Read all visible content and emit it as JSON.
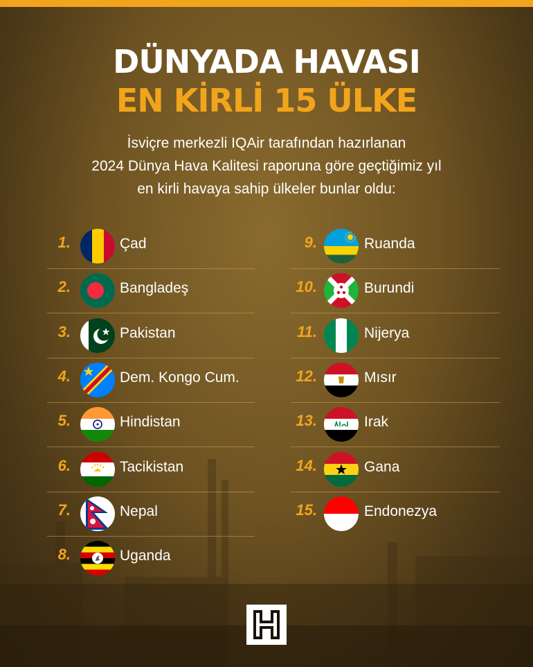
{
  "header": {
    "title_line1": "DÜNYADA HAVASI",
    "title_line2": "EN KİRLİ 15 ÜLKE"
  },
  "intro": {
    "line1": "İsviçre merkezli IQAir tarafından hazırlanan",
    "line2": "2024 Dünya Hava Kalitesi raporuna göre geçtiğimiz yıl",
    "line3": "en kirli havaya sahip ülkeler bunlar oldu:"
  },
  "colors": {
    "accent": "#f2a51c",
    "text": "#ffffff"
  },
  "countries": [
    {
      "rank": "1.",
      "name": "Çad",
      "flag": "chad-flag-icon"
    },
    {
      "rank": "2.",
      "name": "Bangladeş",
      "flag": "bangladesh-flag-icon"
    },
    {
      "rank": "3.",
      "name": "Pakistan",
      "flag": "pakistan-flag-icon"
    },
    {
      "rank": "4.",
      "name": "Dem. Kongo Cum.",
      "flag": "dr-congo-flag-icon"
    },
    {
      "rank": "5.",
      "name": "Hindistan",
      "flag": "india-flag-icon"
    },
    {
      "rank": "6.",
      "name": "Tacikistan",
      "flag": "tajikistan-flag-icon"
    },
    {
      "rank": "7.",
      "name": "Nepal",
      "flag": "nepal-flag-icon"
    },
    {
      "rank": "8.",
      "name": "Uganda",
      "flag": "uganda-flag-icon"
    },
    {
      "rank": "9.",
      "name": "Ruanda",
      "flag": "rwanda-flag-icon"
    },
    {
      "rank": "10.",
      "name": "Burundi",
      "flag": "burundi-flag-icon"
    },
    {
      "rank": "11.",
      "name": "Nijerya",
      "flag": "nigeria-flag-icon"
    },
    {
      "rank": "12.",
      "name": "Mısır",
      "flag": "egypt-flag-icon"
    },
    {
      "rank": "13.",
      "name": "Irak",
      "flag": "iraq-flag-icon"
    },
    {
      "rank": "14.",
      "name": "Gana",
      "flag": "ghana-flag-icon"
    },
    {
      "rank": "15.",
      "name": "Endonezya",
      "flag": "indonesia-flag-icon"
    }
  ],
  "footer": {
    "logo": "H"
  }
}
